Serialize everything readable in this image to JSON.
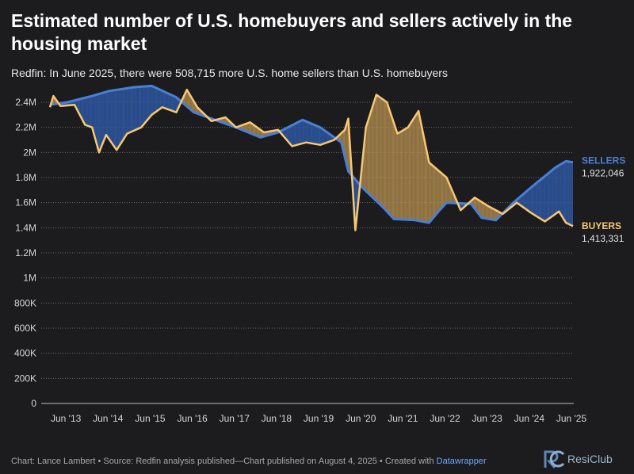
{
  "title": "Estimated number of U.S. homebuyers and sellers actively in the housing market",
  "subtitle": "Redfin: In June 2025, there were 508,715 more U.S. home sellers than U.S. homebuyers",
  "footer": {
    "text": "Chart: Lance Lambert • Source: Redfin analysis published—Chart published on August 4, 2025 • Created with ",
    "link": "Datawrapper"
  },
  "logo": {
    "text": "ResiClub"
  },
  "colors": {
    "sellers": "#4a7fd6",
    "buyers": "#f7c873",
    "sellers_fill": "#2f5aa8",
    "buyers_fill": "#c39a55"
  },
  "chart_data": {
    "type": "line",
    "ylim": [
      0,
      2400000
    ],
    "y_ticks": [
      {
        "v": 0,
        "label": "0"
      },
      {
        "v": 200000,
        "label": "200K"
      },
      {
        "v": 400000,
        "label": "400K"
      },
      {
        "v": 600000,
        "label": "600K"
      },
      {
        "v": 800000,
        "label": "800K"
      },
      {
        "v": 1000000,
        "label": "1M"
      },
      {
        "v": 1200000,
        "label": "1.2M"
      },
      {
        "v": 1400000,
        "label": "1.4M"
      },
      {
        "v": 1600000,
        "label": "1.6M"
      },
      {
        "v": 1800000,
        "label": "1.8M"
      },
      {
        "v": 2000000,
        "label": "2M"
      },
      {
        "v": 2200000,
        "label": "2.2M"
      },
      {
        "v": 2400000,
        "label": "2.4M"
      }
    ],
    "x_ticks": [
      {
        "x": "2013-06",
        "label": "Jun '13"
      },
      {
        "x": "2014-06",
        "label": "Jun '14"
      },
      {
        "x": "2015-06",
        "label": "Jun '15"
      },
      {
        "x": "2016-06",
        "label": "Jun '16"
      },
      {
        "x": "2017-06",
        "label": "Jun '17"
      },
      {
        "x": "2018-06",
        "label": "Jun '18"
      },
      {
        "x": "2019-06",
        "label": "Jun '19"
      },
      {
        "x": "2020-06",
        "label": "Jun '20"
      },
      {
        "x": "2021-06",
        "label": "Jun '21"
      },
      {
        "x": "2022-06",
        "label": "Jun '22"
      },
      {
        "x": "2023-06",
        "label": "Jun '23"
      },
      {
        "x": "2024-06",
        "label": "Jun '24"
      },
      {
        "x": "2025-06",
        "label": "Jun '25"
      }
    ],
    "series": [
      {
        "name": "SELLERS",
        "last_value_label": "1,922,046",
        "points": [
          [
            "2013-01",
            2380000
          ],
          [
            "2013-06",
            2400000
          ],
          [
            "2014-01",
            2450000
          ],
          [
            "2014-06",
            2490000
          ],
          [
            "2015-01",
            2520000
          ],
          [
            "2015-06",
            2530000
          ],
          [
            "2016-01",
            2440000
          ],
          [
            "2016-06",
            2320000
          ],
          [
            "2017-01",
            2250000
          ],
          [
            "2017-06",
            2200000
          ],
          [
            "2018-01",
            2120000
          ],
          [
            "2018-06",
            2160000
          ],
          [
            "2019-01",
            2260000
          ],
          [
            "2019-06",
            2200000
          ],
          [
            "2019-12",
            2080000
          ],
          [
            "2020-02",
            1850000
          ],
          [
            "2020-06",
            1720000
          ],
          [
            "2020-12",
            1560000
          ],
          [
            "2021-03",
            1470000
          ],
          [
            "2021-09",
            1460000
          ],
          [
            "2022-01",
            1440000
          ],
          [
            "2022-04",
            1540000
          ],
          [
            "2022-06",
            1600000
          ],
          [
            "2023-01",
            1590000
          ],
          [
            "2023-04",
            1480000
          ],
          [
            "2023-08",
            1460000
          ],
          [
            "2024-01",
            1600000
          ],
          [
            "2024-06",
            1720000
          ],
          [
            "2025-01",
            1880000
          ],
          [
            "2025-04",
            1930000
          ],
          [
            "2025-06",
            1922046
          ]
        ]
      },
      {
        "name": "BUYERS",
        "last_value_label": "1,413,331",
        "points": [
          [
            "2013-01",
            2360000
          ],
          [
            "2013-02",
            2450000
          ],
          [
            "2013-04",
            2370000
          ],
          [
            "2013-08",
            2380000
          ],
          [
            "2013-11",
            2220000
          ],
          [
            "2014-01",
            2200000
          ],
          [
            "2014-03",
            2000000
          ],
          [
            "2014-05",
            2140000
          ],
          [
            "2014-08",
            2020000
          ],
          [
            "2014-11",
            2150000
          ],
          [
            "2015-03",
            2200000
          ],
          [
            "2015-06",
            2300000
          ],
          [
            "2015-09",
            2360000
          ],
          [
            "2016-01",
            2320000
          ],
          [
            "2016-04",
            2500000
          ],
          [
            "2016-07",
            2360000
          ],
          [
            "2016-11",
            2250000
          ],
          [
            "2017-03",
            2280000
          ],
          [
            "2017-06",
            2200000
          ],
          [
            "2017-10",
            2240000
          ],
          [
            "2018-02",
            2160000
          ],
          [
            "2018-06",
            2180000
          ],
          [
            "2018-10",
            2050000
          ],
          [
            "2019-02",
            2080000
          ],
          [
            "2019-06",
            2060000
          ],
          [
            "2019-10",
            2100000
          ],
          [
            "2020-01",
            2180000
          ],
          [
            "2020-02",
            2270000
          ],
          [
            "2020-04",
            1380000
          ],
          [
            "2020-07",
            2200000
          ],
          [
            "2020-10",
            2460000
          ],
          [
            "2021-01",
            2400000
          ],
          [
            "2021-04",
            2150000
          ],
          [
            "2021-07",
            2200000
          ],
          [
            "2021-10",
            2330000
          ],
          [
            "2022-01",
            1920000
          ],
          [
            "2022-06",
            1800000
          ],
          [
            "2022-10",
            1540000
          ],
          [
            "2023-02",
            1640000
          ],
          [
            "2023-06",
            1570000
          ],
          [
            "2023-10",
            1510000
          ],
          [
            "2024-02",
            1600000
          ],
          [
            "2024-06",
            1520000
          ],
          [
            "2024-10",
            1450000
          ],
          [
            "2025-02",
            1530000
          ],
          [
            "2025-04",
            1440000
          ],
          [
            "2025-06",
            1413331
          ]
        ]
      }
    ]
  }
}
